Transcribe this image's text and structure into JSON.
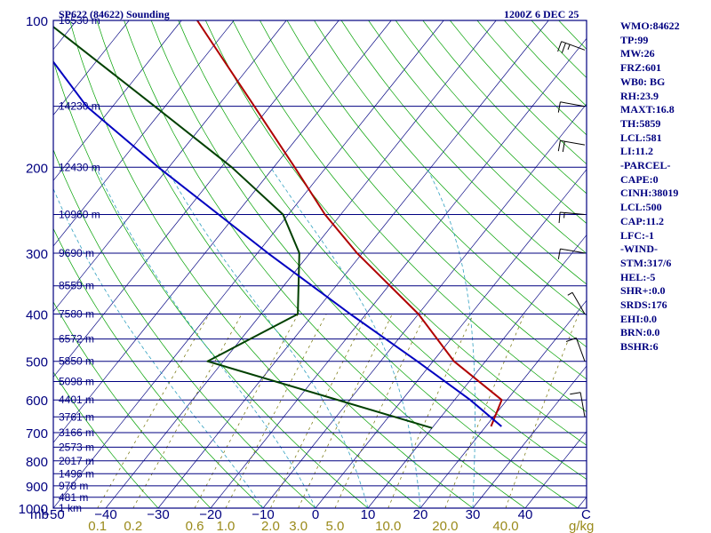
{
  "header": {
    "station": "SP622 (84622) Sounding",
    "time": "1200Z  6 DEC 25"
  },
  "indices": [
    "WMO:84622",
    "TP:99",
    "MW:26",
    "FRZ:601",
    "WB0: BG",
    "RH:23.9",
    "MAXT:16.8",
    "TH:5859",
    "LCL:581",
    "LI:11.2",
    "-PARCEL-",
    "CAPE:0",
    "CINH:38019",
    "LCL:500",
    "CAP:11.2",
    "LFC:-1",
    "-WIND-",
    "STM:317/6",
    "HEL:-5",
    "SHR+:0.0",
    "SRDS:176",
    "EHI:0.0",
    "BRN:0.0",
    "BSHR:6"
  ],
  "chart_data": {
    "type": "skew-t",
    "title": "SP622 (84622) Sounding",
    "ylabel": "mb",
    "xlabel": "C",
    "mixing_ratio_unit": "g/kg",
    "pressure_range": [
      1000,
      100
    ],
    "temperature_range": [
      -50,
      50
    ],
    "pressure_ticks": [
      100,
      200,
      300,
      400,
      500,
      600,
      700,
      800,
      900,
      1000
    ],
    "temperature_ticks": [
      "-50",
      "-40",
      "-30",
      "-20",
      "-10",
      "0",
      "10",
      "20",
      "30",
      "40"
    ],
    "mixing_ratio_labels": [
      "0.1",
      "0.2",
      "0.6",
      "1.0",
      "2.0",
      "3.0",
      "5.0",
      "10.0",
      "20.0",
      "40.0"
    ],
    "height_levels": [
      {
        "p": 100,
        "label": "16530 m"
      },
      {
        "p": 150,
        "label": "14230 m"
      },
      {
        "p": 200,
        "label": "12430 m"
      },
      {
        "p": 250,
        "label": "10960 m"
      },
      {
        "p": 300,
        "label": "9690 m"
      },
      {
        "p": 350,
        "label": "8559 m"
      },
      {
        "p": 400,
        "label": "7580 m"
      },
      {
        "p": 450,
        "label": "6572 m"
      },
      {
        "p": 500,
        "label": "5850 m"
      },
      {
        "p": 550,
        "label": "5098 m"
      },
      {
        "p": 600,
        "label": "4401 m"
      },
      {
        "p": 650,
        "label": "3761 m"
      },
      {
        "p": 700,
        "label": "3166 m"
      },
      {
        "p": 750,
        "label": "2573 m"
      },
      {
        "p": 800,
        "label": "2017 m"
      },
      {
        "p": 850,
        "label": "1496 m"
      },
      {
        "p": 900,
        "label": "978 m"
      },
      {
        "p": 950,
        "label": "481 m"
      },
      {
        "p": 1000,
        "label": "1 km"
      }
    ],
    "series": [
      {
        "name": "Temperature",
        "color": "#b00000",
        "points": [
          {
            "p": 680,
            "t": 21
          },
          {
            "p": 600,
            "t": 19
          },
          {
            "p": 500,
            "t": 4
          },
          {
            "p": 400,
            "t": -10
          },
          {
            "p": 300,
            "t": -31
          },
          {
            "p": 250,
            "t": -43
          },
          {
            "p": 200,
            "t": -56
          },
          {
            "p": 150,
            "t": -73
          },
          {
            "p": 100,
            "t": -97
          }
        ]
      },
      {
        "name": "Dewpoint",
        "color": "#004000",
        "points": [
          {
            "p": 685,
            "t": 10
          },
          {
            "p": 500,
            "t": -43
          },
          {
            "p": 400,
            "t": -33
          },
          {
            "p": 300,
            "t": -42
          },
          {
            "p": 250,
            "t": -51
          },
          {
            "p": 200,
            "t": -68
          },
          {
            "p": 150,
            "t": -92
          },
          {
            "p": 100,
            "t": -126
          }
        ]
      },
      {
        "name": "Parcel",
        "color": "#0000c0",
        "points": [
          {
            "p": 680,
            "t": 23
          },
          {
            "p": 600,
            "t": 13
          },
          {
            "p": 500,
            "t": -3
          },
          {
            "p": 400,
            "t": -23
          },
          {
            "p": 300,
            "t": -48
          },
          {
            "p": 200,
            "t": -82
          },
          {
            "p": 150,
            "t": -105
          },
          {
            "p": 118,
            "t": -120
          }
        ]
      }
    ],
    "isotherms_range": [
      -200,
      50,
      10
    ],
    "dry_adiabats_theta": [
      -30,
      -20,
      -10,
      0,
      10,
      20,
      30,
      40,
      50,
      60,
      70,
      80,
      90,
      100,
      110,
      120,
      130,
      140,
      150,
      160,
      170,
      180,
      190,
      200,
      210,
      220
    ],
    "mixing_ratios": [
      0.1,
      0.2,
      0.6,
      1.0,
      2.0,
      3.0,
      5.0,
      10.0,
      20.0,
      40.0
    ],
    "wind_barbs": [
      {
        "p": 115,
        "dir": 290,
        "spd": 25
      },
      {
        "p": 150,
        "dir": 280,
        "spd": 10
      },
      {
        "p": 180,
        "dir": 280,
        "spd": 20
      },
      {
        "p": 250,
        "dir": 275,
        "spd": 15
      },
      {
        "p": 300,
        "dir": 280,
        "spd": 10
      },
      {
        "p": 400,
        "dir": 330,
        "spd": 5
      },
      {
        "p": 500,
        "dir": 340,
        "spd": 10
      },
      {
        "p": 650,
        "dir": 350,
        "spd": 10
      }
    ],
    "colors": {
      "frame": "#000080",
      "isobar": "#000080",
      "isotherm": "#000080",
      "dry_adiabat": "#00a000",
      "moist_adiabat": "#30a0c0",
      "mixing_ratio": "#707000",
      "wind": "#000000"
    }
  }
}
